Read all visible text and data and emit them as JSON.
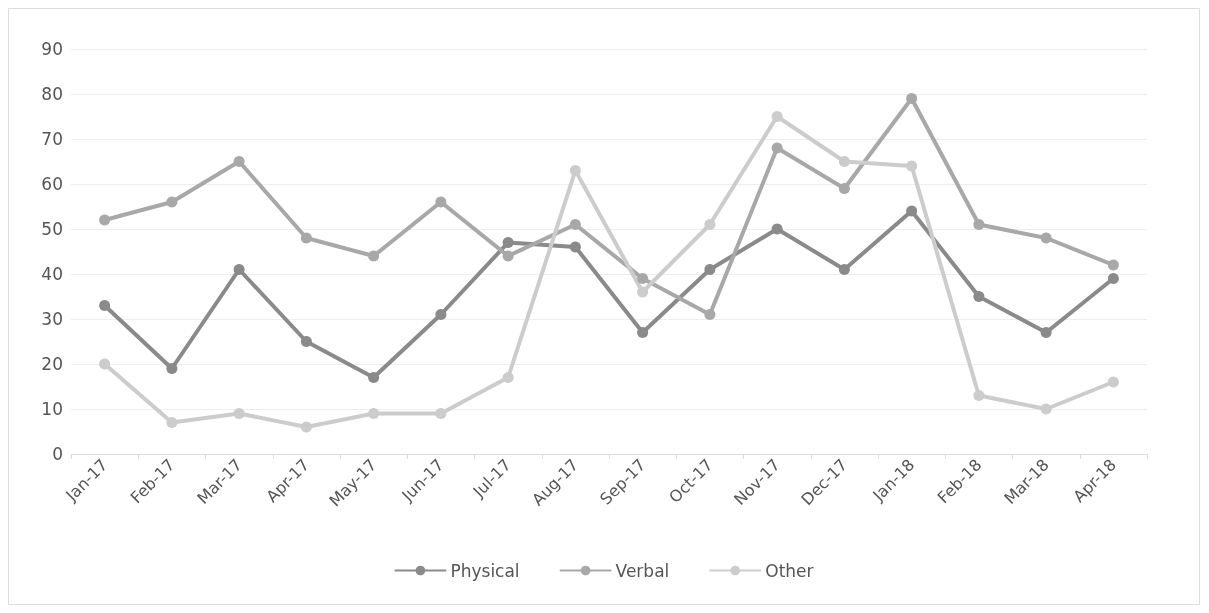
{
  "chart_data": {
    "type": "line",
    "categories": [
      "Jan-17",
      "Feb-17",
      "Mar-17",
      "Apr-17",
      "May-17",
      "Jun-17",
      "Jul-17",
      "Aug-17",
      "Sep-17",
      "Oct-17",
      "Nov-17",
      "Dec-17",
      "Jan-18",
      "Feb-18",
      "Mar-18",
      "Apr-18"
    ],
    "series": [
      {
        "name": "Physical",
        "color": "#8a8a8a",
        "values": [
          33,
          19,
          41,
          25,
          17,
          31,
          47,
          46,
          27,
          41,
          50,
          41,
          54,
          35,
          27,
          39
        ]
      },
      {
        "name": "Verbal",
        "color": "#a8a8a8",
        "values": [
          52,
          56,
          65,
          48,
          44,
          56,
          44,
          51,
          39,
          31,
          68,
          59,
          79,
          51,
          48,
          42
        ]
      },
      {
        "name": "Other",
        "color": "#cccccc",
        "values": [
          20,
          7,
          9,
          6,
          9,
          9,
          17,
          63,
          36,
          51,
          75,
          65,
          64,
          13,
          10,
          16
        ]
      }
    ],
    "ylim": [
      0,
      90
    ],
    "yticks": [
      0,
      10,
      20,
      30,
      40,
      50,
      60,
      70,
      80,
      90
    ],
    "grid": "y",
    "legend": "bottom",
    "marker": "circle",
    "line_style": "solid"
  }
}
